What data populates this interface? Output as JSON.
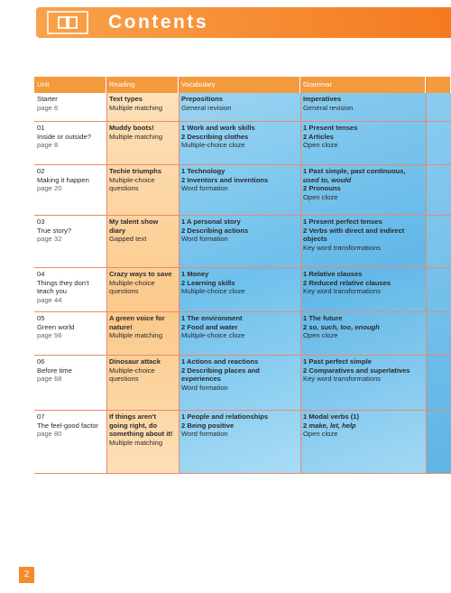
{
  "header": {
    "title": "Contents"
  },
  "table": {
    "headers": [
      "Unit",
      "Reading",
      "Vocabulary",
      "Grammar"
    ],
    "rows": [
      {
        "unit": {
          "title": "Starter",
          "page": "page 6"
        },
        "reading": {
          "bold": [
            "Text types"
          ],
          "plain": [
            "Multiple matching"
          ]
        },
        "vocabulary": {
          "bold": [
            "Prepositions"
          ],
          "plain": [
            "General revision"
          ]
        },
        "grammar": {
          "bold": [
            "Imperatives"
          ],
          "plain": [
            "General revision"
          ]
        }
      },
      {
        "unit": {
          "number": "01",
          "title": "Inside or outside?",
          "page": "page 8"
        },
        "reading": {
          "bold": [
            "Muddy boots!"
          ],
          "plain": [
            "Multiple matching"
          ]
        },
        "vocabulary": {
          "bold": [
            "1 Work and work skills",
            "2 Describing clothes"
          ],
          "plain": [
            "Multiple-choice cloze"
          ]
        },
        "grammar": {
          "bold": [
            "1 Present tenses",
            "2 Articles"
          ],
          "plain": [
            "Open cloze"
          ]
        }
      },
      {
        "unit": {
          "number": "02",
          "title": "Making it happen",
          "page": "page 20"
        },
        "reading": {
          "bold": [
            "Techie triumphs"
          ],
          "plain": [
            "Multiple-choice questions"
          ]
        },
        "vocabulary": {
          "bold": [
            "1 Technology",
            "2 Inventors and inventions"
          ],
          "plain": [
            "Word formation"
          ]
        },
        "grammar": {
          "bold": [
            {
              "text": "1 Past simple, past continuous,",
              "em": "used to, would"
            },
            "2 Pronouns"
          ],
          "plain": [
            "Open cloze"
          ]
        }
      },
      {
        "unit": {
          "number": "03",
          "title": "True story?",
          "page": "page 32"
        },
        "reading": {
          "bold": [
            "My talent show diary"
          ],
          "plain": [
            "Gapped text"
          ]
        },
        "vocabulary": {
          "bold": [
            "1 A personal story",
            "2 Describing actions"
          ],
          "plain": [
            "Word formation"
          ]
        },
        "grammar": {
          "bold": [
            "1 Present perfect tenses",
            "2 Verbs with direct and indirect objects"
          ],
          "plain": [
            "Key word transformations"
          ]
        }
      },
      {
        "unit": {
          "number": "04",
          "title": "Things they don't teach you",
          "page": "page 44"
        },
        "reading": {
          "bold": [
            "Crazy ways to save"
          ],
          "plain": [
            "Multiple-choice questions"
          ]
        },
        "vocabulary": {
          "bold": [
            "1 Money",
            "2 Learning skills"
          ],
          "plain": [
            "Multiple-choice cloze"
          ]
        },
        "grammar": {
          "bold": [
            "1 Relative clauses",
            "2 Reduced relative clauses"
          ],
          "plain": [
            "Key word transformations"
          ]
        }
      },
      {
        "unit": {
          "number": "05",
          "title": "Green world",
          "page": "page 56"
        },
        "reading": {
          "bold": [
            "A green voice for nature!"
          ],
          "plain": [
            "Multiple matching"
          ]
        },
        "vocabulary": {
          "bold": [
            "1 The environment",
            "2 Food and water"
          ],
          "plain": [
            "Multiple-choice cloze"
          ]
        },
        "grammar": {
          "bold": [
            "1 The future",
            {
              "text": "2",
              "em": "so, such, too, enough"
            }
          ],
          "plain": [
            "Open cloze"
          ]
        }
      },
      {
        "unit": {
          "number": "06",
          "title": "Before time",
          "page": "page 68"
        },
        "reading": {
          "bold": [
            "Dinosaur attack"
          ],
          "plain": [
            "Multiple-choice questions"
          ]
        },
        "vocabulary": {
          "bold": [
            "1 Actions and reactions",
            "2 Describing places and experiences"
          ],
          "plain": [
            "Word formation"
          ]
        },
        "grammar": {
          "bold": [
            "1 Past perfect simple",
            "2 Comparatives and superlatives"
          ],
          "plain": [
            "Key word transformations"
          ]
        }
      },
      {
        "unit": {
          "number": "07",
          "title": "The feel-good factor",
          "page": "page 80"
        },
        "reading": {
          "bold": [
            "If things aren't going right, do something about it!"
          ],
          "plain": [
            "Multiple matching"
          ]
        },
        "vocabulary": {
          "bold": [
            "1 People and relationships",
            "2 Being positive"
          ],
          "plain": [
            "Word formation"
          ]
        },
        "grammar": {
          "bold": [
            "1 Modal verbs (1)",
            {
              "text": "2",
              "em": "make, let, help"
            }
          ],
          "plain": [
            "Open cloze"
          ]
        }
      }
    ]
  },
  "footer": {
    "page_number": "2"
  }
}
